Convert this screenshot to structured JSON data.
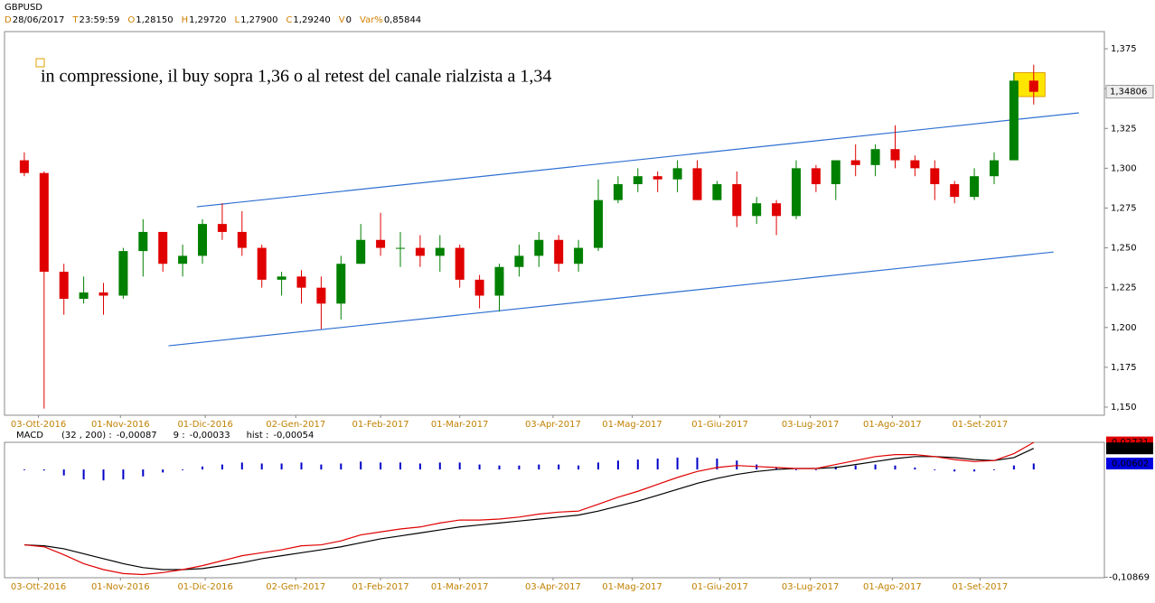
{
  "header": {
    "symbol": "GBPUSD",
    "fields": [
      {
        "label": "D",
        "value": "28/06/2017"
      },
      {
        "label": "T",
        "value": "23:59:59"
      },
      {
        "label": "O",
        "value": "1,28150"
      },
      {
        "label": "H",
        "value": "1,29720"
      },
      {
        "label": "L",
        "value": "1,27900"
      },
      {
        "label": "C",
        "value": "1,29240"
      },
      {
        "label": "V",
        "value": "0"
      },
      {
        "label": "Var%",
        "value": "0,85844"
      }
    ]
  },
  "chart_data": [
    {
      "type": "candlestick",
      "annotation": "in compressione, il buy sopra 1,36 o al retest del canale rialzista a 1,34",
      "up_color": "#008000",
      "down_color": "#e00000",
      "line_color": "#2f6fd0",
      "x": [
        "2016-09-28",
        "2016-10-05",
        "2016-10-12",
        "2016-10-19",
        "2016-10-26",
        "2016-11-02",
        "2016-11-09",
        "2016-11-16",
        "2016-11-23",
        "2016-11-30",
        "2016-12-07",
        "2016-12-14",
        "2016-12-21",
        "2016-12-28",
        "2017-01-04",
        "2017-01-11",
        "2017-01-18",
        "2017-01-25",
        "2017-02-01",
        "2017-02-08",
        "2017-02-15",
        "2017-02-22",
        "2017-03-01",
        "2017-03-08",
        "2017-03-15",
        "2017-03-22",
        "2017-03-29",
        "2017-04-05",
        "2017-04-12",
        "2017-04-19",
        "2017-04-26",
        "2017-05-03",
        "2017-05-10",
        "2017-05-17",
        "2017-05-24",
        "2017-05-31",
        "2017-06-07",
        "2017-06-14",
        "2017-06-21",
        "2017-06-28",
        "2017-07-05",
        "2017-07-12",
        "2017-07-19",
        "2017-07-26",
        "2017-08-02",
        "2017-08-09",
        "2017-08-16",
        "2017-08-23",
        "2017-08-30",
        "2017-09-06",
        "2017-09-13",
        "2017-09-20"
      ],
      "open": [
        1.305,
        1.297,
        1.235,
        1.218,
        1.222,
        1.22,
        1.248,
        1.26,
        1.24,
        1.245,
        1.265,
        1.26,
        1.25,
        1.23,
        1.232,
        1.225,
        1.215,
        1.24,
        1.255,
        1.25,
        1.25,
        1.245,
        1.25,
        1.23,
        1.22,
        1.238,
        1.245,
        1.255,
        1.24,
        1.25,
        1.28,
        1.29,
        1.295,
        1.293,
        1.3,
        1.28,
        1.29,
        1.27,
        1.278,
        1.27,
        1.3,
        1.29,
        1.305,
        1.302,
        1.312,
        1.305,
        1.3,
        1.29,
        1.282,
        1.295,
        1.305,
        1.355
      ],
      "high": [
        1.31,
        1.298,
        1.24,
        1.232,
        1.228,
        1.25,
        1.268,
        1.26,
        1.252,
        1.268,
        1.278,
        1.273,
        1.252,
        1.235,
        1.236,
        1.232,
        1.245,
        1.265,
        1.272,
        1.26,
        1.258,
        1.258,
        1.252,
        1.233,
        1.24,
        1.252,
        1.26,
        1.258,
        1.255,
        1.293,
        1.295,
        1.3,
        1.298,
        1.305,
        1.305,
        1.292,
        1.298,
        1.282,
        1.28,
        1.305,
        1.302,
        1.305,
        1.315,
        1.315,
        1.327,
        1.308,
        1.305,
        1.292,
        1.3,
        1.31,
        1.36,
        1.365
      ],
      "low": [
        1.295,
        1.1491,
        1.208,
        1.215,
        1.208,
        1.218,
        1.232,
        1.235,
        1.232,
        1.24,
        1.255,
        1.245,
        1.225,
        1.22,
        1.215,
        1.199,
        1.205,
        1.24,
        1.245,
        1.238,
        1.238,
        1.235,
        1.225,
        1.212,
        1.21,
        1.232,
        1.238,
        1.235,
        1.235,
        1.248,
        1.278,
        1.285,
        1.285,
        1.285,
        1.28,
        1.28,
        1.263,
        1.265,
        1.258,
        1.268,
        1.285,
        1.28,
        1.295,
        1.295,
        1.3,
        1.295,
        1.28,
        1.278,
        1.28,
        1.29,
        1.305,
        1.34
      ],
      "close": [
        1.297,
        1.235,
        1.218,
        1.222,
        1.22,
        1.248,
        1.26,
        1.24,
        1.245,
        1.265,
        1.26,
        1.25,
        1.23,
        1.232,
        1.225,
        1.215,
        1.24,
        1.255,
        1.25,
        1.25,
        1.245,
        1.25,
        1.23,
        1.22,
        1.238,
        1.245,
        1.255,
        1.24,
        1.25,
        1.28,
        1.29,
        1.295,
        1.293,
        1.3,
        1.28,
        1.29,
        1.27,
        1.278,
        1.27,
        1.3,
        1.29,
        1.305,
        1.302,
        1.312,
        1.305,
        1.3,
        1.29,
        1.282,
        1.295,
        1.305,
        1.355,
        1.348
      ],
      "xlim": [
        "2016-09-21",
        "2017-10-15"
      ],
      "xticks": [
        {
          "value": "2016-10-03",
          "label": "03-Ott-2016"
        },
        {
          "value": "2016-11-01",
          "label": "01-Nov-2016"
        },
        {
          "value": "2016-12-01",
          "label": "01-Dic-2016"
        },
        {
          "value": "2017-01-02",
          "label": "02-Gen-2017"
        },
        {
          "value": "2017-02-01",
          "label": "01-Feb-2017"
        },
        {
          "value": "2017-03-01",
          "label": "01-Mar-2017"
        },
        {
          "value": "2017-04-03",
          "label": "03-Apr-2017"
        },
        {
          "value": "2017-05-01",
          "label": "01-Mag-2017"
        },
        {
          "value": "2017-06-01",
          "label": "01-Giu-2017"
        },
        {
          "value": "2017-07-03",
          "label": "03-Lug-2017"
        },
        {
          "value": "2017-08-01",
          "label": "01-Ago-2017"
        },
        {
          "value": "2017-09-01",
          "label": "01-Set-2017"
        }
      ],
      "ylim": [
        1.1449,
        1.3858
      ],
      "yticks": [
        {
          "value": 1.375,
          "label": "1,375"
        },
        {
          "value": 1.35,
          "label": "1,350"
        },
        {
          "value": 1.325,
          "label": "1,325"
        },
        {
          "value": 1.3,
          "label": "1,300"
        },
        {
          "value": 1.275,
          "label": "1,275"
        },
        {
          "value": 1.25,
          "label": "1,250"
        },
        {
          "value": 1.225,
          "label": "1,225"
        },
        {
          "value": 1.2,
          "label": "1,200"
        },
        {
          "value": 1.175,
          "label": "1,175"
        },
        {
          "value": 1.15,
          "label": "1,150"
        }
      ],
      "last_price": {
        "value": 1.34806,
        "label": "1,34806"
      },
      "trendlines": [
        {
          "x": [
            "2016-11-28",
            "2017-10-06"
          ],
          "y": [
            1.2758,
            1.3348
          ]
        },
        {
          "x": [
            "2016-11-18",
            "2017-09-27"
          ],
          "y": [
            1.1885,
            1.2474
          ]
        }
      ],
      "highlight": {
        "x": [
          "2017-09-13",
          "2017-09-24"
        ],
        "y": [
          1.345,
          1.36
        ],
        "color": "#ffe600"
      }
    },
    {
      "type": "macd",
      "title": "MACD",
      "ylim": [
        -0.1092,
        0.0274
      ],
      "yticks": [
        {
          "value": -0.10869,
          "label": "-0,10869"
        }
      ],
      "series": [
        {
          "name": "(32 , 200) :",
          "color": "#e00000",
          "readout": {
            "value": -0.00087,
            "label": "-0,00087"
          },
          "last_label": {
            "value": 0.02731,
            "label": "0,02731"
          },
          "values": [
            -0.076,
            -0.078,
            -0.086,
            -0.095,
            -0.101,
            -0.105,
            -0.106,
            -0.104,
            -0.101,
            -0.097,
            -0.092,
            -0.087,
            -0.084,
            -0.081,
            -0.077,
            -0.076,
            -0.072,
            -0.066,
            -0.063,
            -0.06,
            -0.058,
            -0.054,
            -0.051,
            -0.051,
            -0.05,
            -0.048,
            -0.045,
            -0.043,
            -0.042,
            -0.035,
            -0.028,
            -0.022,
            -0.015,
            -0.008,
            -0.002,
            0.002,
            0.004,
            0.003,
            0.002,
            0.001,
            0.001,
            0.005,
            0.009,
            0.013,
            0.015,
            0.015,
            0.013,
            0.01,
            0.008,
            0.009,
            0.016,
            0.02731
          ]
        },
        {
          "name": "9 :",
          "color": "#000000",
          "readout": {
            "value": -0.00033,
            "label": "-0,00033"
          },
          "last_label": {
            "value": 0.02129,
            "label": "0,02129"
          },
          "values": [
            -0.076,
            -0.077,
            -0.08,
            -0.085,
            -0.09,
            -0.095,
            -0.099,
            -0.101,
            -0.101,
            -0.1,
            -0.097,
            -0.094,
            -0.09,
            -0.087,
            -0.084,
            -0.081,
            -0.078,
            -0.074,
            -0.07,
            -0.067,
            -0.064,
            -0.061,
            -0.058,
            -0.056,
            -0.054,
            -0.052,
            -0.05,
            -0.048,
            -0.046,
            -0.042,
            -0.037,
            -0.032,
            -0.026,
            -0.02,
            -0.014,
            -0.009,
            -0.005,
            -0.002,
            0,
            0.001,
            0.001,
            0.002,
            0.005,
            0.008,
            0.011,
            0.013,
            0.013,
            0.012,
            0.01,
            0.009,
            0.012,
            0.02129
          ]
        },
        {
          "name": "hist :",
          "color": "#0000c8",
          "readout": {
            "value": -0.00054,
            "label": "-0,00054"
          },
          "last_label": {
            "value": 0.00602,
            "label": "0,00602"
          },
          "values": [
            0,
            -0.001,
            -0.006,
            -0.01,
            -0.011,
            -0.01,
            -0.007,
            -0.003,
            0,
            0.003,
            0.005,
            0.007,
            0.006,
            0.006,
            0.007,
            0.005,
            0.006,
            0.008,
            0.007,
            0.007,
            0.006,
            0.007,
            0.007,
            0.005,
            0.004,
            0.004,
            0.005,
            0.005,
            0.004,
            0.007,
            0.009,
            0.01,
            0.011,
            0.012,
            0.012,
            0.011,
            0.009,
            0.005,
            0.002,
            0,
            0,
            0.003,
            0.004,
            0.005,
            0.004,
            0.002,
            0,
            -0.002,
            -0.002,
            0,
            0.004,
            0.00602
          ]
        }
      ]
    }
  ]
}
